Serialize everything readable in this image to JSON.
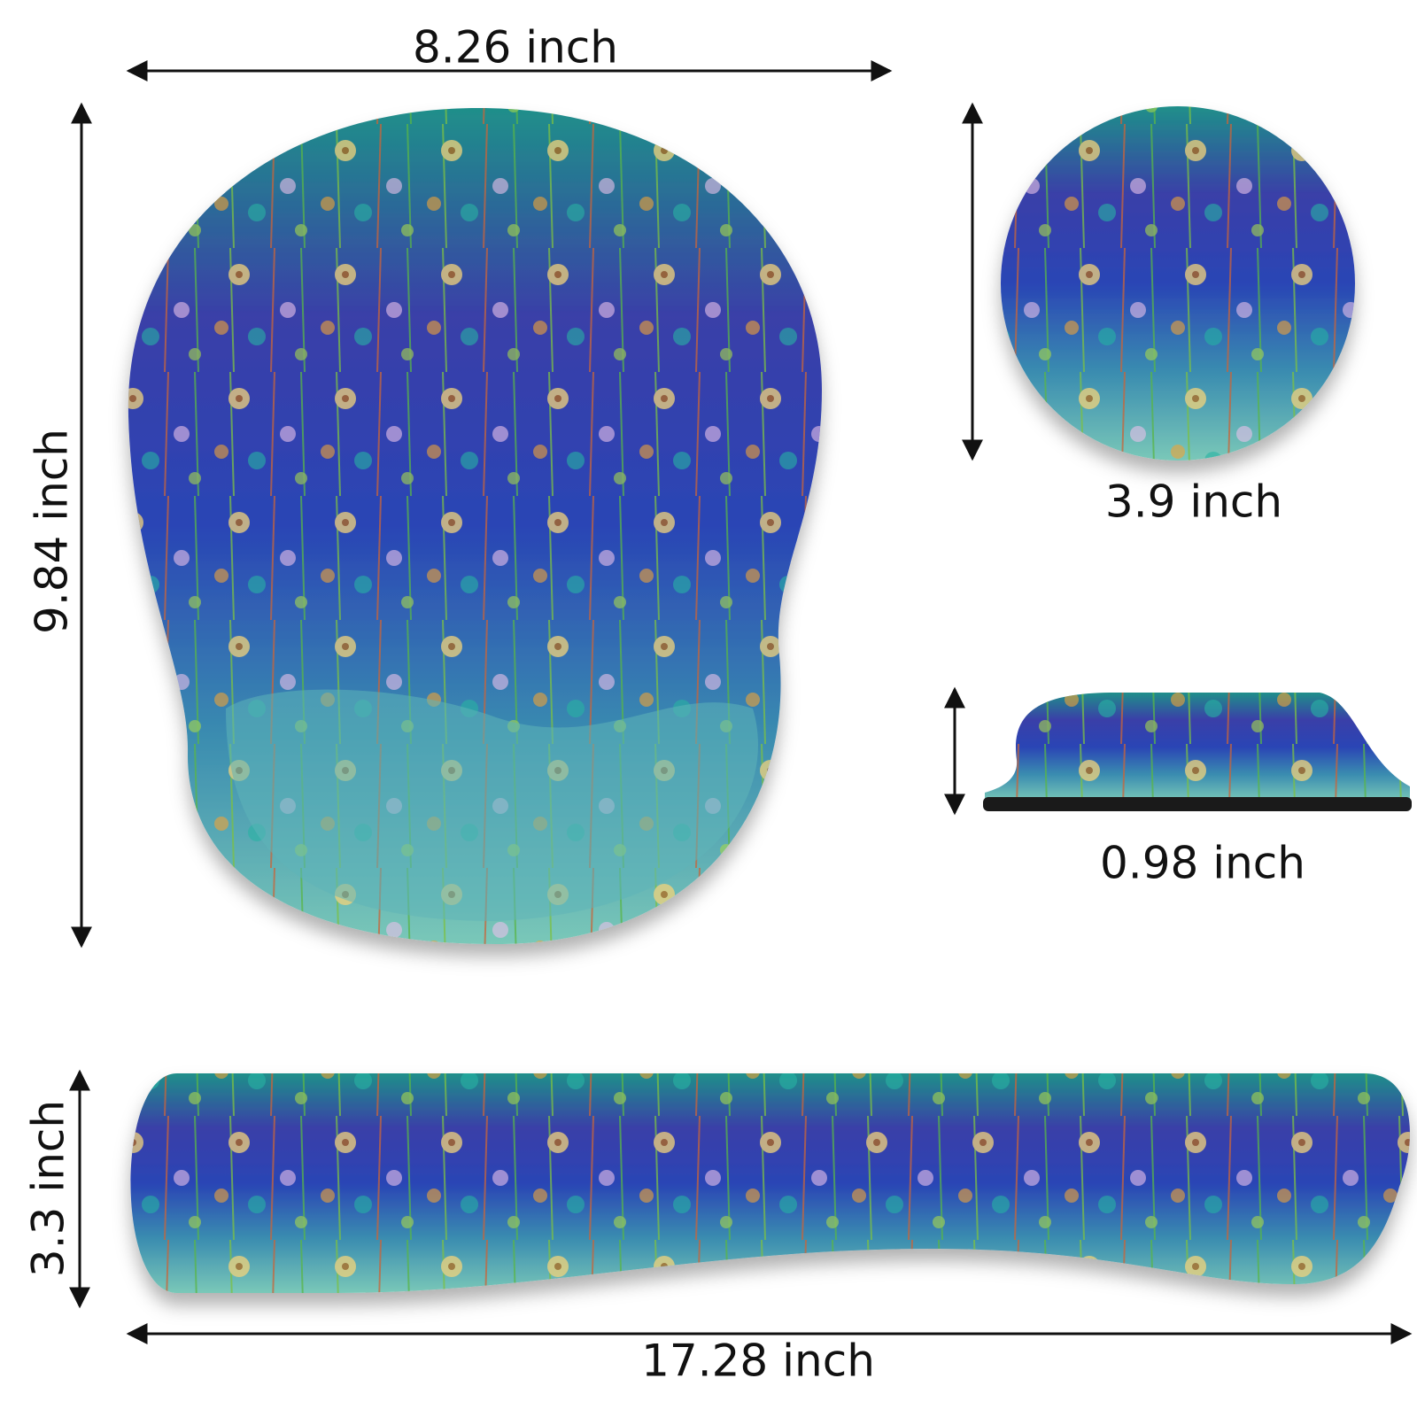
{
  "mouse_pad": {
    "width": "8.26 inch",
    "height": "9.84 inch"
  },
  "coaster": {
    "diameter": "3.9 inch"
  },
  "side_view": {
    "thickness": "0.98 inch"
  },
  "wrist_rest": {
    "height": "3.3 inch",
    "width": "17.28 inch"
  }
}
